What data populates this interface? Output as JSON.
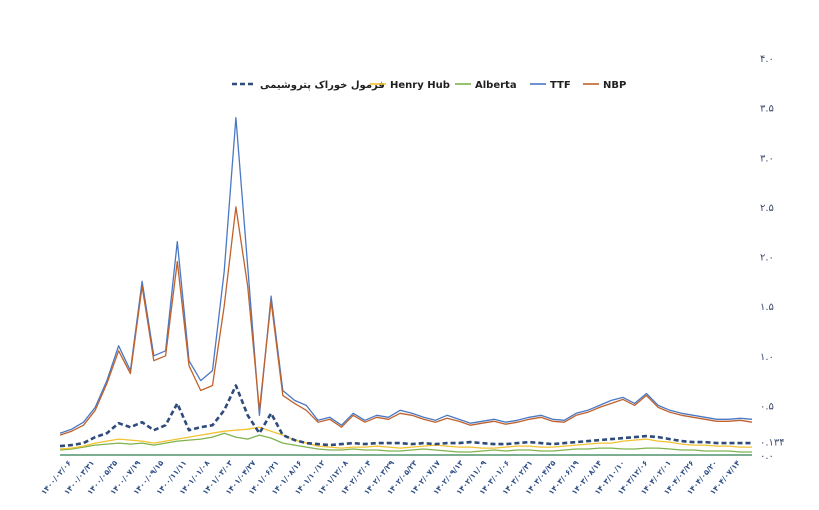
{
  "chart_data": {
    "type": "line",
    "title": "",
    "xlabel": "",
    "ylabel": "",
    "ylim": [
      0,
      4.0
    ],
    "y_ticks": [
      "۰.۰",
      "۰.۱۳۴",
      "۰.۵",
      "۱.۰",
      "۱.۵",
      "۲.۰",
      "۲.۵",
      "۳.۰",
      "۳.۵",
      "۴.۰"
    ],
    "y_tick_values": [
      0,
      0.134,
      0.5,
      1.0,
      1.5,
      2.0,
      2.5,
      3.0,
      3.5,
      4.0
    ],
    "y_axis_side": "right",
    "grid": false,
    "legend_position": "top",
    "x_tick_labels": [
      "۱۴۰۰/۰۲/۰۶",
      "۱۴۰۰/۰۳/۳۱",
      "۱۴۰۰/۰۵/۲۵",
      "۱۴۰۰/۰۷/۱۹",
      "۱۴۰۰/۰۹/۱۵",
      "۱۴۰۰/۱۱/۱۱",
      "۱۴۰۱/۰۱/۰۸",
      "۱۴۰۱/۰۳/۰۳",
      "۱۴۰۱/۰۴/۲۷",
      "۱۴۰۱/۰۶/۲۱",
      "۱۴۰۱/۰۸/۱۶",
      "۱۴۰۱/۱۰/۱۲",
      "۱۴۰۱/۱۲/۰۸",
      "۱۴۰۲/۰۲/۰۴",
      "۱۴۰۲/۰۳/۲۹",
      "۱۴۰۲/۰۵/۲۳",
      "۱۴۰۲/۰۷/۱۷",
      "۱۴۰۲/۰۹/۱۳",
      "۱۴۰۲/۱۱/۰۹",
      "۱۴۰۳/۰۱/۰۶",
      "۱۴۰۳/۰۲/۳۱",
      "۱۴۰۳/۰۴/۲۵",
      "۱۴۰۳/۰۶/۱۹",
      "۱۴۰۳/۰۸/۱۴",
      "۱۴۰۳/۱۰/۱۰",
      "۱۴۰۳/۱۲/۰۶",
      "۱۴۰۴/۰۲/۰۱",
      "۱۴۰۴/۰۳/۲۶",
      "۱۴۰۴/۰۵/۲۰",
      "۱۴۰۴/۰۷/۱۴"
    ],
    "series": [
      {
        "name": "فرمول خوراک پتروشیمی",
        "color": "#2f4b7c",
        "dash": true,
        "values": [
          0.09,
          0.1,
          0.12,
          0.18,
          0.22,
          0.32,
          0.28,
          0.33,
          0.25,
          0.3,
          0.52,
          0.25,
          0.28,
          0.3,
          0.45,
          0.7,
          0.4,
          0.22,
          0.42,
          0.2,
          0.15,
          0.12,
          0.11,
          0.1,
          0.11,
          0.12,
          0.11,
          0.12,
          0.12,
          0.12,
          0.11,
          0.12,
          0.11,
          0.12,
          0.12,
          0.13,
          0.12,
          0.11,
          0.11,
          0.12,
          0.13,
          0.12,
          0.11,
          0.12,
          0.13,
          0.14,
          0.15,
          0.16,
          0.17,
          0.18,
          0.19,
          0.18,
          0.16,
          0.14,
          0.13,
          0.13,
          0.12,
          0.12,
          0.12,
          0.12
        ]
      },
      {
        "name": "Henry Hub",
        "color": "#f2c230",
        "dash": false,
        "values": [
          0.06,
          0.07,
          0.09,
          0.12,
          0.14,
          0.16,
          0.15,
          0.14,
          0.12,
          0.14,
          0.16,
          0.18,
          0.2,
          0.22,
          0.24,
          0.25,
          0.26,
          0.28,
          0.24,
          0.2,
          0.15,
          0.12,
          0.09,
          0.08,
          0.07,
          0.08,
          0.08,
          0.09,
          0.08,
          0.07,
          0.08,
          0.09,
          0.1,
          0.09,
          0.08,
          0.08,
          0.07,
          0.07,
          0.08,
          0.09,
          0.09,
          0.08,
          0.08,
          0.09,
          0.1,
          0.11,
          0.12,
          0.12,
          0.14,
          0.15,
          0.16,
          0.14,
          0.13,
          0.11,
          0.1,
          0.1,
          0.09,
          0.09,
          0.08,
          0.08
        ]
      },
      {
        "name": "Alberta",
        "color": "#7fb34d",
        "dash": false,
        "values": [
          0.05,
          0.06,
          0.08,
          0.1,
          0.11,
          0.12,
          0.11,
          0.12,
          0.1,
          0.12,
          0.14,
          0.15,
          0.16,
          0.18,
          0.22,
          0.18,
          0.16,
          0.2,
          0.17,
          0.12,
          0.1,
          0.08,
          0.06,
          0.05,
          0.05,
          0.06,
          0.05,
          0.05,
          0.04,
          0.04,
          0.05,
          0.06,
          0.05,
          0.04,
          0.03,
          0.03,
          0.04,
          0.05,
          0.04,
          0.05,
          0.05,
          0.04,
          0.04,
          0.05,
          0.06,
          0.06,
          0.07,
          0.07,
          0.06,
          0.06,
          0.07,
          0.07,
          0.06,
          0.05,
          0.05,
          0.04,
          0.04,
          0.04,
          0.03,
          0.03
        ]
      },
      {
        "name": "TTF",
        "color": "#4a78c4",
        "dash": false,
        "values": [
          0.22,
          0.26,
          0.33,
          0.48,
          0.75,
          1.1,
          0.85,
          1.75,
          1.0,
          1.05,
          2.15,
          0.95,
          0.75,
          0.85,
          1.85,
          3.4,
          1.9,
          0.4,
          1.6,
          0.65,
          0.55,
          0.5,
          0.35,
          0.38,
          0.3,
          0.42,
          0.35,
          0.4,
          0.38,
          0.45,
          0.42,
          0.38,
          0.35,
          0.4,
          0.36,
          0.32,
          0.34,
          0.36,
          0.33,
          0.35,
          0.38,
          0.4,
          0.36,
          0.35,
          0.42,
          0.45,
          0.5,
          0.55,
          0.58,
          0.52,
          0.62,
          0.5,
          0.45,
          0.42,
          0.4,
          0.38,
          0.36,
          0.36,
          0.37,
          0.36
        ]
      },
      {
        "name": "NBP",
        "color": "#c0622c",
        "dash": false,
        "values": [
          0.2,
          0.24,
          0.3,
          0.45,
          0.72,
          1.05,
          0.82,
          1.7,
          0.95,
          1.0,
          1.95,
          0.9,
          0.65,
          0.7,
          1.5,
          2.5,
          1.7,
          0.45,
          1.55,
          0.6,
          0.52,
          0.45,
          0.33,
          0.36,
          0.28,
          0.4,
          0.33,
          0.38,
          0.36,
          0.42,
          0.4,
          0.36,
          0.33,
          0.37,
          0.34,
          0.3,
          0.32,
          0.34,
          0.31,
          0.33,
          0.36,
          0.38,
          0.34,
          0.33,
          0.4,
          0.43,
          0.48,
          0.52,
          0.56,
          0.5,
          0.6,
          0.48,
          0.43,
          0.4,
          0.38,
          0.36,
          0.34,
          0.34,
          0.35,
          0.33
        ]
      }
    ]
  }
}
